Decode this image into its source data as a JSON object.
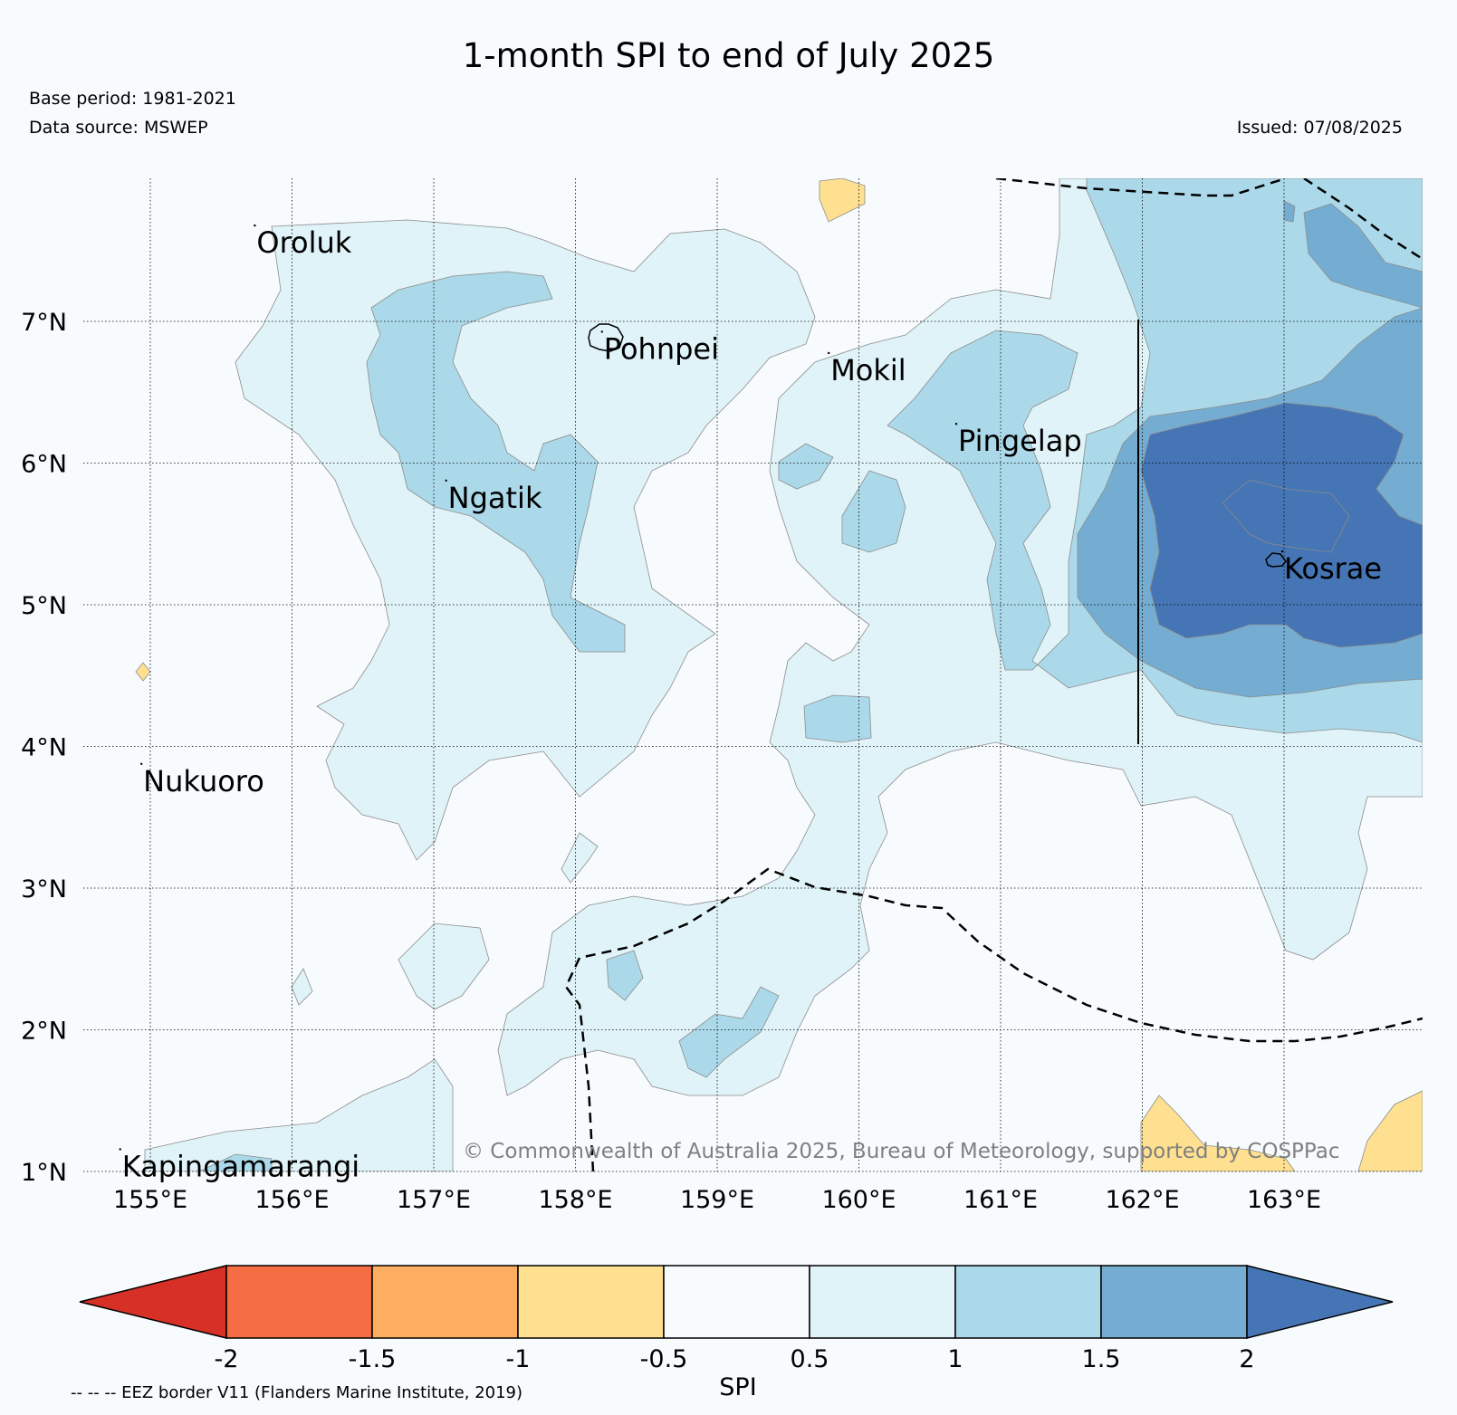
{
  "title": "1-month SPI to end of July 2025",
  "base_period": "Base period: 1981-2021",
  "data_source": "Data source: MSWEP",
  "issued": "Issued: 07/08/2025",
  "copyright": "© Commonwealth of Australia 2025, Bureau of Meteorology, supported by COSPPac",
  "eez_note": "-- -- -- EEZ border V11 (Flanders Marine Institute, 2019)",
  "colors": {
    "background": "#f7fbfd",
    "bin_lt_m2": "#d73027",
    "bin_m2_m15": "#f46d43",
    "bin_m15_m1": "#fdae61",
    "bin_m1_m05": "#fee090",
    "bin_m05_05": "#f7fbfd",
    "bin_05_1": "#e0f3f8",
    "bin_1_15": "#abd9e9",
    "bin_15_2": "#74add1",
    "bin_gt_2": "#4575b4"
  },
  "islands": [
    {
      "name": "Oroluk",
      "lon": 155.75,
      "lat": 7.6
    },
    {
      "name": "Pohnpei",
      "lon": 158.2,
      "lat": 6.85
    },
    {
      "name": "Mokil",
      "lon": 159.8,
      "lat": 6.7
    },
    {
      "name": "Pingelap",
      "lon": 160.7,
      "lat": 6.2
    },
    {
      "name": "Ngatik",
      "lon": 157.1,
      "lat": 5.8
    },
    {
      "name": "Kosrae",
      "lon": 163.0,
      "lat": 5.3
    },
    {
      "name": "Nukuoro",
      "lon": 154.95,
      "lat": 3.8
    },
    {
      "name": "Kapingamarangi",
      "lon": 154.8,
      "lat": 1.08
    }
  ],
  "axes": {
    "lon_ticks": [
      "155°E",
      "156°E",
      "157°E",
      "158°E",
      "159°E",
      "160°E",
      "161°E",
      "162°E",
      "163°E"
    ],
    "lat_ticks": [
      "7°N",
      "6°N",
      "5°N",
      "4°N",
      "3°N",
      "2°N",
      "1°N"
    ],
    "lon_values": [
      155,
      156,
      157,
      158,
      159,
      160,
      161,
      162,
      163
    ],
    "lat_values": [
      7,
      6,
      5,
      4,
      3,
      2,
      1
    ],
    "lon_range": [
      154.5,
      164.0
    ],
    "lat_range": [
      1.0,
      8.0
    ]
  },
  "colorbar": {
    "label": "SPI",
    "ticks": [
      "-2",
      "-1.5",
      "-1",
      "-0.5",
      "0.5",
      "1",
      "1.5",
      "2"
    ],
    "extend": "both"
  }
}
